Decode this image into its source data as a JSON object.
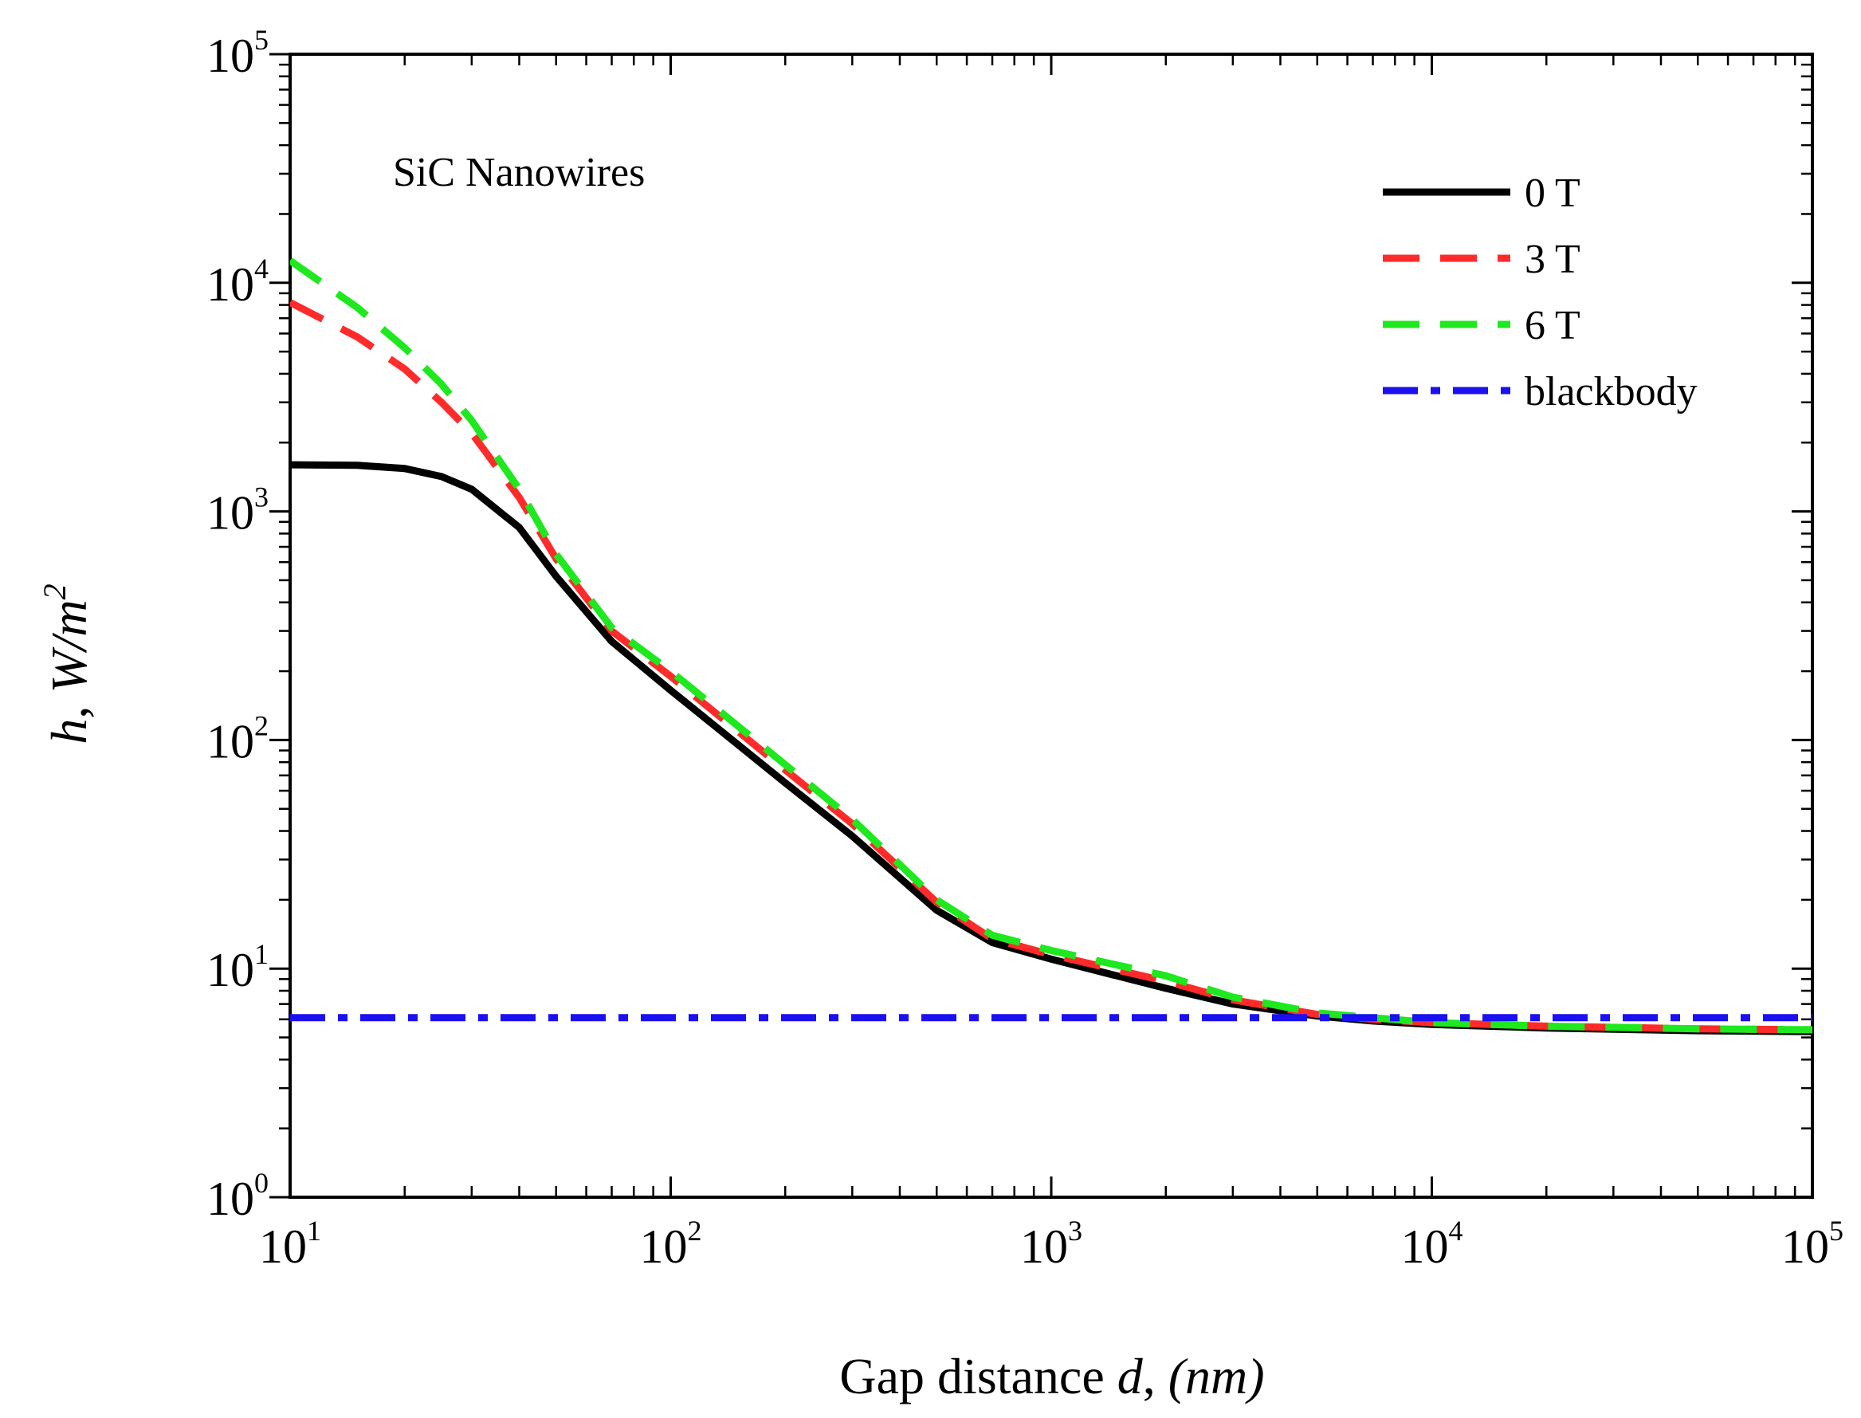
{
  "chart_data": {
    "type": "line",
    "title": "",
    "annotation": "SiC Nanowires",
    "xlabel": {
      "prefix": "Gap distance ",
      "var": "d",
      "suffix": ", ",
      "unit": "(nm)"
    },
    "ylabel": {
      "var": "h",
      "sep": ", ",
      "unit": "W/m",
      "unit_exp": "2"
    },
    "xscale": "log",
    "yscale": "log",
    "xlim": [
      10,
      100000
    ],
    "ylim": [
      1,
      100000
    ],
    "x_ticks": [
      {
        "base": "10",
        "exp": "1",
        "value": 10
      },
      {
        "base": "10",
        "exp": "2",
        "value": 100
      },
      {
        "base": "10",
        "exp": "3",
        "value": 1000
      },
      {
        "base": "10",
        "exp": "4",
        "value": 10000
      },
      {
        "base": "10",
        "exp": "5",
        "value": 100000
      }
    ],
    "y_ticks": [
      {
        "base": "10",
        "exp": "0",
        "value": 1
      },
      {
        "base": "10",
        "exp": "1",
        "value": 10
      },
      {
        "base": "10",
        "exp": "2",
        "value": 100
      },
      {
        "base": "10",
        "exp": "3",
        "value": 1000
      },
      {
        "base": "10",
        "exp": "4",
        "value": 10000
      },
      {
        "base": "10",
        "exp": "5",
        "value": 100000
      }
    ],
    "legend_position": "top-right",
    "series": [
      {
        "name": "0 T",
        "color": "#000000",
        "style": "solid",
        "x": [
          10,
          15,
          20,
          25,
          30,
          40,
          50,
          70,
          100,
          200,
          300,
          500,
          700,
          1000,
          2000,
          3000,
          5000,
          7000,
          10000,
          20000,
          50000,
          100000
        ],
        "y": [
          1600,
          1590,
          1540,
          1420,
          1250,
          850,
          520,
          270,
          165,
          65,
          38,
          18,
          13,
          11,
          8.2,
          7.0,
          6.2,
          5.9,
          5.7,
          5.5,
          5.35,
          5.3
        ]
      },
      {
        "name": "3 T",
        "color": "#ff2a2a",
        "style": "dashed",
        "x": [
          10,
          15,
          20,
          25,
          30,
          40,
          50,
          70,
          100,
          200,
          300,
          500,
          700,
          1000,
          2000,
          3000,
          5000,
          7000,
          10000,
          20000,
          50000,
          100000
        ],
        "y": [
          8200,
          5800,
          4200,
          3000,
          2200,
          1150,
          620,
          300,
          190,
          74,
          43,
          19.5,
          13.5,
          11.5,
          8.8,
          7.3,
          6.3,
          6.0,
          5.8,
          5.6,
          5.45,
          5.4
        ]
      },
      {
        "name": "6 T",
        "color": "#1ee81e",
        "style": "dashed",
        "x": [
          10,
          15,
          20,
          25,
          30,
          40,
          50,
          70,
          100,
          200,
          300,
          500,
          700,
          1000,
          2000,
          3000,
          5000,
          7000,
          10000,
          20000,
          50000,
          100000
        ],
        "y": [
          12500,
          7800,
          5200,
          3600,
          2500,
          1250,
          650,
          310,
          200,
          78,
          45,
          20,
          14,
          12,
          9.3,
          7.5,
          6.4,
          6.1,
          5.8,
          5.6,
          5.45,
          5.4
        ]
      },
      {
        "name": "blackbody",
        "color": "#1a10f0",
        "style": "dashdot",
        "x": [
          10,
          100000
        ],
        "y": [
          6.1,
          6.1
        ]
      }
    ]
  }
}
